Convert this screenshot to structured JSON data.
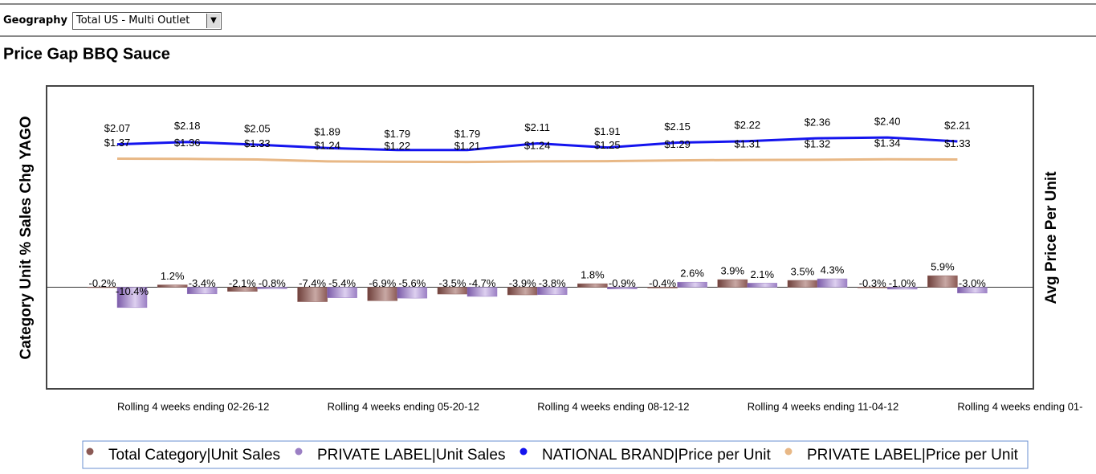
{
  "filter": {
    "label": "Geography",
    "value": "Total US - Multi Outlet"
  },
  "chart_data": {
    "type": "bar-line",
    "title": "Price Gap BBQ Sauce",
    "y_label": "Category Unit % Sales Chg YAGO",
    "y2_label": "Avg Price Per Unit",
    "categories": [
      "Rolling 4 weeks ending 02-26-12",
      null,
      null,
      "Rolling 4 weeks ending 05-20-12",
      null,
      null,
      "Rolling 4 weeks ending 08-12-12",
      null,
      null,
      "Rolling 4 weeks ending 11-04-12",
      null,
      null,
      "Rolling 4 weeks ending 01-"
    ],
    "ylim": [
      -52,
      103
    ],
    "y2lim": [
      -9.8,
      4.9
    ],
    "legend": "bottom",
    "series": [
      {
        "name": "Total Category|Unit Sales",
        "type": "bar",
        "color": "#8b5a55",
        "values": [
          -0.2,
          1.2,
          -2.1,
          -7.4,
          -6.9,
          -3.5,
          -3.9,
          1.8,
          -0.4,
          3.9,
          3.5,
          -0.3,
          5.9
        ],
        "value_labels": [
          "-0.2%",
          "1.2%",
          "-2.1%",
          "-7.4%",
          "-6.9%",
          "-3.5%",
          "-3.9%",
          "1.8%",
          "-0.4%",
          "3.9%",
          "3.5%",
          "-0.3%",
          "5.9%"
        ]
      },
      {
        "name": "PRIVATE LABEL|Unit Sales",
        "type": "bar",
        "color": "#9b7fc4",
        "values": [
          -10.4,
          -3.4,
          -0.8,
          -5.4,
          -5.6,
          -4.7,
          -3.8,
          -0.9,
          2.6,
          2.1,
          4.3,
          -1.0,
          -3.0
        ],
        "value_labels": [
          "-10.4%",
          "-3.4%",
          "-0.8%",
          "-5.4%",
          "-5.6%",
          "-4.7%",
          "-3.8%",
          "-0.9%",
          "2.6%",
          "2.1%",
          "4.3%",
          "-1.0%",
          "-3.0%"
        ]
      },
      {
        "name": "NATIONAL BRAND|Price per Unit",
        "type": "line",
        "axis": "y2",
        "color": "#1414ee",
        "values": [
          2.07,
          2.18,
          2.05,
          1.89,
          1.79,
          1.79,
          2.11,
          1.91,
          2.15,
          2.22,
          2.36,
          2.4,
          2.21
        ],
        "value_labels": [
          "$2.07",
          "$2.18",
          "$2.05",
          "$1.89",
          "$1.79",
          "$1.79",
          "$2.11",
          "$1.91",
          "$2.15",
          "$2.22",
          "$2.36",
          "$2.40",
          "$2.21"
        ]
      },
      {
        "name": "PRIVATE LABEL|Price per Unit",
        "type": "line",
        "axis": "y2",
        "color": "#e8b886",
        "values": [
          1.37,
          1.36,
          1.33,
          1.24,
          1.22,
          1.21,
          1.24,
          1.25,
          1.29,
          1.31,
          1.32,
          1.34,
          1.33
        ],
        "value_labels": [
          "$1.37",
          "$1.36",
          "$1.33",
          "$1.24",
          "$1.22",
          "$1.21",
          "$1.24",
          "$1.25",
          "$1.29",
          "$1.31",
          "$1.32",
          "$1.34",
          "$1.33"
        ]
      }
    ]
  }
}
